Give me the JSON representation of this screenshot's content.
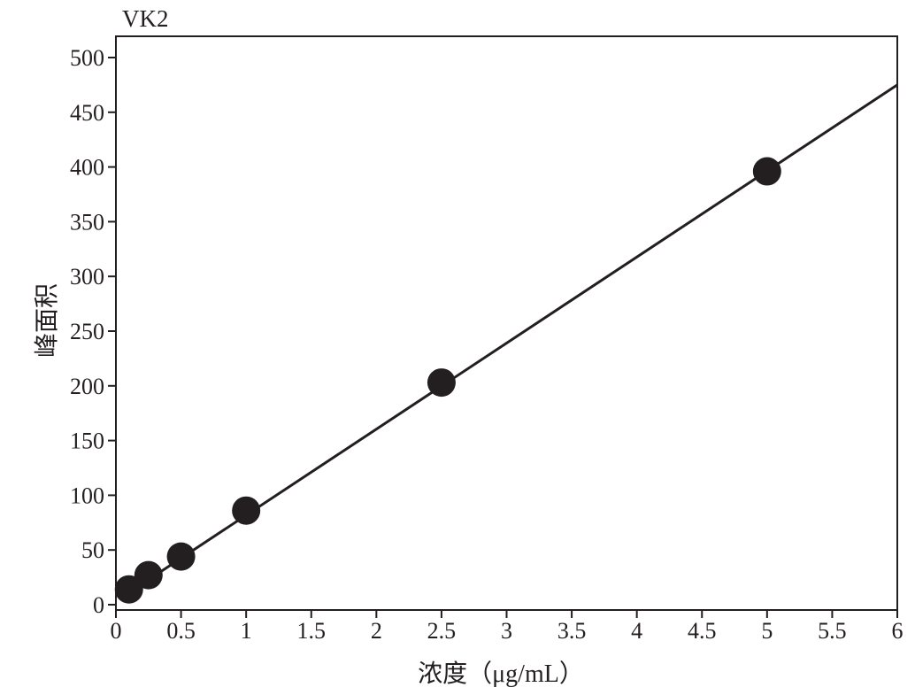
{
  "chart_data": {
    "type": "scatter",
    "title": "VK2",
    "xlabel": "浓度（μg/mL）",
    "ylabel": "峰面积",
    "xlim": [
      0,
      6
    ],
    "ylim": [
      0,
      520
    ],
    "xticks": [
      "0",
      "0.5",
      "1",
      "1.5",
      "2",
      "2.5",
      "3",
      "3.5",
      "4",
      "4.5",
      "5",
      "5.5",
      "6"
    ],
    "yticks": [
      "0",
      "50",
      "100",
      "150",
      "200",
      "250",
      "300",
      "350",
      "400",
      "450",
      "500"
    ],
    "grid": false,
    "legend": "none",
    "series": [
      {
        "x": [
          0.1,
          0.25,
          0.5,
          1.0,
          2.5,
          5.0
        ],
        "y": [
          14,
          27,
          44,
          86,
          203,
          396
        ]
      }
    ],
    "fit_line": {
      "x": [
        0.1,
        6.0
      ],
      "y": [
        11,
        475
      ]
    },
    "colors": {
      "marker": "#231f20",
      "line": "#231f20",
      "axis": "#231f20"
    }
  }
}
